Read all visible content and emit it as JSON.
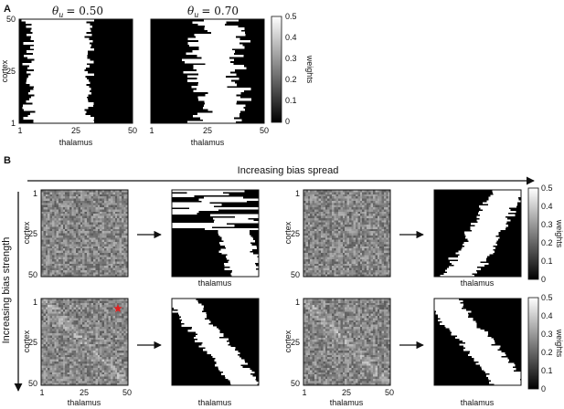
{
  "panel_a": {
    "letter": "A",
    "titles": [
      "θ_u = 0.50",
      "θ_u = 0.70"
    ],
    "theta_symbol": "θ",
    "theta_sub": "u",
    "theta_values": [
      "= 0.50",
      "= 0.70"
    ],
    "y_label": "cortex",
    "y_ticks": [
      "50",
      "25",
      "1"
    ],
    "x_label": "thalamus",
    "x_ticks": [
      "1",
      "25",
      "50"
    ],
    "colorbar": {
      "label": "weights",
      "ticks": [
        "0.5",
        "0.4",
        "0.3",
        "0.2",
        "0.1",
        "0"
      ]
    }
  },
  "panel_b": {
    "letter": "B",
    "spread_label": "Increasing bias spread",
    "strength_label": "Increasing bias strength",
    "y_label": "cortex",
    "y_ticks": [
      "1",
      "25",
      "50"
    ],
    "x_label": "thalamus",
    "x_ticks": [
      "1",
      "25",
      "50"
    ],
    "colorbar": {
      "label": "weights",
      "ticks": [
        "0.5",
        "0.4",
        "0.3",
        "0.2",
        "0.1",
        "0"
      ]
    },
    "marker_color": "#e02020"
  },
  "colors": {
    "black": "#000000",
    "white": "#ffffff",
    "axis": "#111111"
  }
}
